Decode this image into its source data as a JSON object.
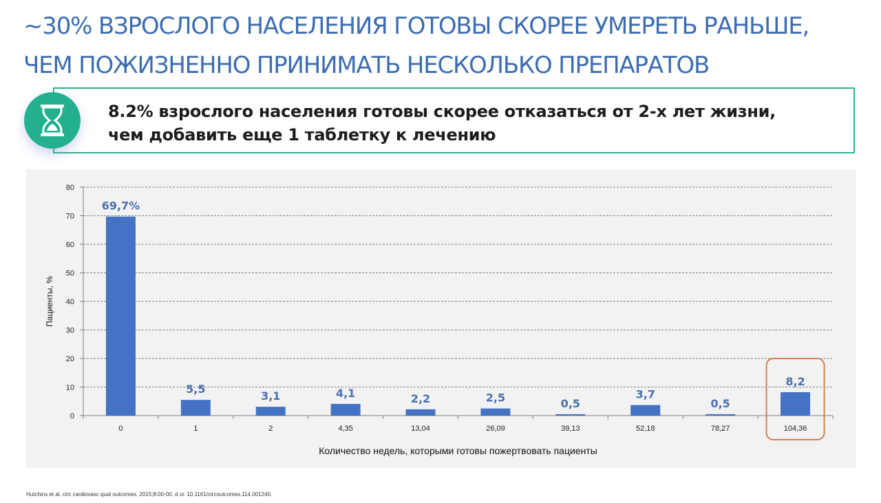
{
  "slide": {
    "title_lines": [
      "~30% ВЗРОСЛОГО НАСЕЛЕНИЯ ГОТОВЫ СКОРЕЕ УМЕРЕТЬ РАНЬШЕ,",
      "ЧЕМ ПОЖИЗНЕННО ПРИНИМАТЬ НЕСКОЛЬКО ПРЕПАРАТОВ"
    ],
    "callout_lines": [
      "8.2% взрослого населения готовы скорее отказаться от 2-х лет жизни,",
      "чем добавить еще 1 таблетку к лечению"
    ],
    "icon": "hourglass-icon",
    "footnote": "Hutchins et al. circ cardiovasc qual outcomes. 2015;8:00-00. d oi: 10.1161/circoutcomes.114.001240.",
    "colors": {
      "title": "#3c6db0",
      "accent": "#23b08f",
      "bar": "#4472c4",
      "highlight": "#d4804a"
    }
  },
  "chart_data": {
    "type": "bar",
    "categories": [
      "0",
      "1",
      "2",
      "4,35",
      "13,04",
      "26,09",
      "39,13",
      "52,18",
      "78,27",
      "104,36"
    ],
    "values": [
      69.7,
      5.5,
      3.1,
      4.1,
      2.2,
      2.5,
      0.5,
      3.7,
      0.5,
      8.2
    ],
    "data_labels": [
      "69,7%",
      "5,5",
      "3,1",
      "4,1",
      "2,2",
      "2,5",
      "0,5",
      "3,7",
      "0,5",
      "8,2"
    ],
    "xlabel": "Количество недель, которыми готовы пожертвовать пациенты",
    "ylabel": "Пациенты, %",
    "ylim": [
      0,
      80
    ],
    "yticks": [
      0,
      10,
      20,
      30,
      40,
      50,
      60,
      70,
      80
    ],
    "grid": true,
    "highlighted_category": "104,36"
  }
}
